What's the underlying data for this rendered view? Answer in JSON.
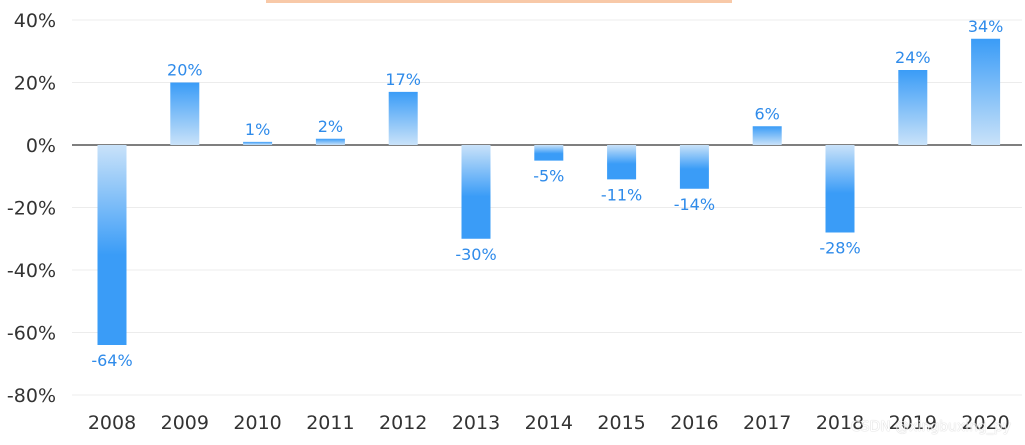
{
  "chart_data": {
    "type": "bar",
    "categories": [
      "2008",
      "2009",
      "2010",
      "2011",
      "2012",
      "2013",
      "2014",
      "2015",
      "2016",
      "2017",
      "2018",
      "2019",
      "2020"
    ],
    "values": [
      -64,
      20,
      1,
      2,
      17,
      -30,
      -5,
      -11,
      -14,
      6,
      -28,
      24,
      34
    ],
    "data_labels": [
      "-64%",
      "20%",
      "1%",
      "2%",
      "17%",
      "-30%",
      "-5%",
      "-11%",
      "-14%",
      "6%",
      "-28%",
      "24%",
      "34%"
    ],
    "ylim": [
      -80,
      40
    ],
    "yticks": [
      40,
      20,
      0,
      -20,
      -40,
      -60,
      -80
    ],
    "ytick_labels": [
      "40%",
      "20%",
      "0%",
      "-20%",
      "-40%",
      "-60%",
      "-80%"
    ],
    "grid": true,
    "colors": {
      "bar_strong": "#3a9cf7",
      "bar_light": "#c9e2f9",
      "label": "#2f8bea"
    }
  },
  "watermark": "CSDN @xingbuxing_py"
}
